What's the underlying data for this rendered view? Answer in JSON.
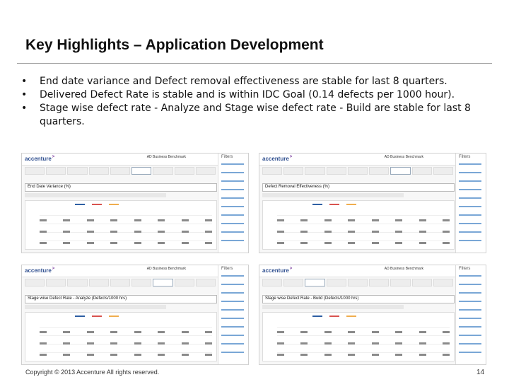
{
  "slide": {
    "title": "Key Highlights – Application Development",
    "bullets": [
      "End date variance and Defect removal effectiveness are stable for last 8 quarters.",
      "Delivered Defect Rate is stable and is within IDC Goal (0.14 defects per 1000 hour).",
      "Stage wise defect rate - Analyze and Stage wise defect rate - Build are stable for last 8 quarters."
    ],
    "bullet_marker": "•"
  },
  "panels": [
    {
      "logo": "accenture",
      "benchmark": "AD Business Benchmark",
      "filters_title": "Filters",
      "metric": "End Date Variance",
      "unit": "(%)",
      "active_tab": 5
    },
    {
      "logo": "accenture",
      "benchmark": "AD Business Benchmark",
      "filters_title": "Filters",
      "metric": "Defect Removal Effectiveness",
      "unit": "(%)",
      "active_tab": 6
    },
    {
      "logo": "accenture",
      "benchmark": "AD Business Benchmark",
      "filters_title": "Filters",
      "metric": "Stage wise Defect Rate - Analyze",
      "unit": "(Defects/1000 hrs)",
      "active_tab": 6
    },
    {
      "logo": "accenture",
      "benchmark": "AD Business Benchmark",
      "filters_title": "Filters",
      "metric": "Stage wise Defect Rate - Build",
      "unit": "(Defects/1000 hrs)",
      "active_tab": 2
    }
  ],
  "colors": {
    "series": [
      "#2e5fa3",
      "#d9534f",
      "#f0ad4e"
    ]
  },
  "footer": {
    "copyright": "Copyright © 2013 Accenture All rights reserved.",
    "page": "14"
  }
}
